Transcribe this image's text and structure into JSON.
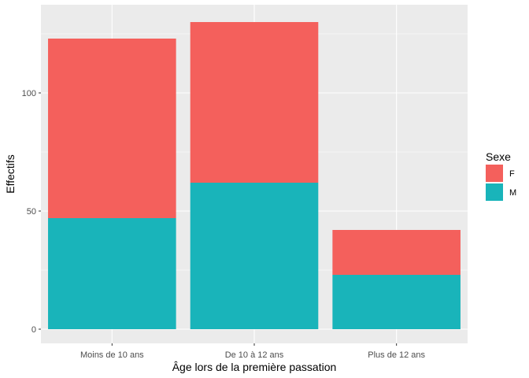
{
  "chart_data": {
    "type": "bar",
    "stacked": true,
    "categories": [
      "Moins de 10 ans",
      "De 10 à 12 ans",
      "Plus de 12 ans"
    ],
    "series": [
      {
        "name": "M",
        "color": "#19B4BA",
        "values": [
          47,
          62,
          23
        ]
      },
      {
        "name": "F",
        "color": "#F4605C",
        "values": [
          76,
          68,
          19
        ]
      }
    ],
    "xlabel": "Âge lors de la première passation",
    "ylabel": "Effectifs",
    "ylim": [
      0,
      137
    ],
    "yticks": [
      0,
      50,
      100
    ],
    "ytick_labels": [
      "0",
      "50",
      "100"
    ],
    "grid": true,
    "legend": {
      "title": "Sexe",
      "position": "right",
      "entries": [
        {
          "label": "F",
          "color": "#F4605C"
        },
        {
          "label": "M",
          "color": "#19B4BA"
        }
      ]
    },
    "panel_background": "#EBEBEB",
    "grid_color": "#FFFFFF"
  }
}
